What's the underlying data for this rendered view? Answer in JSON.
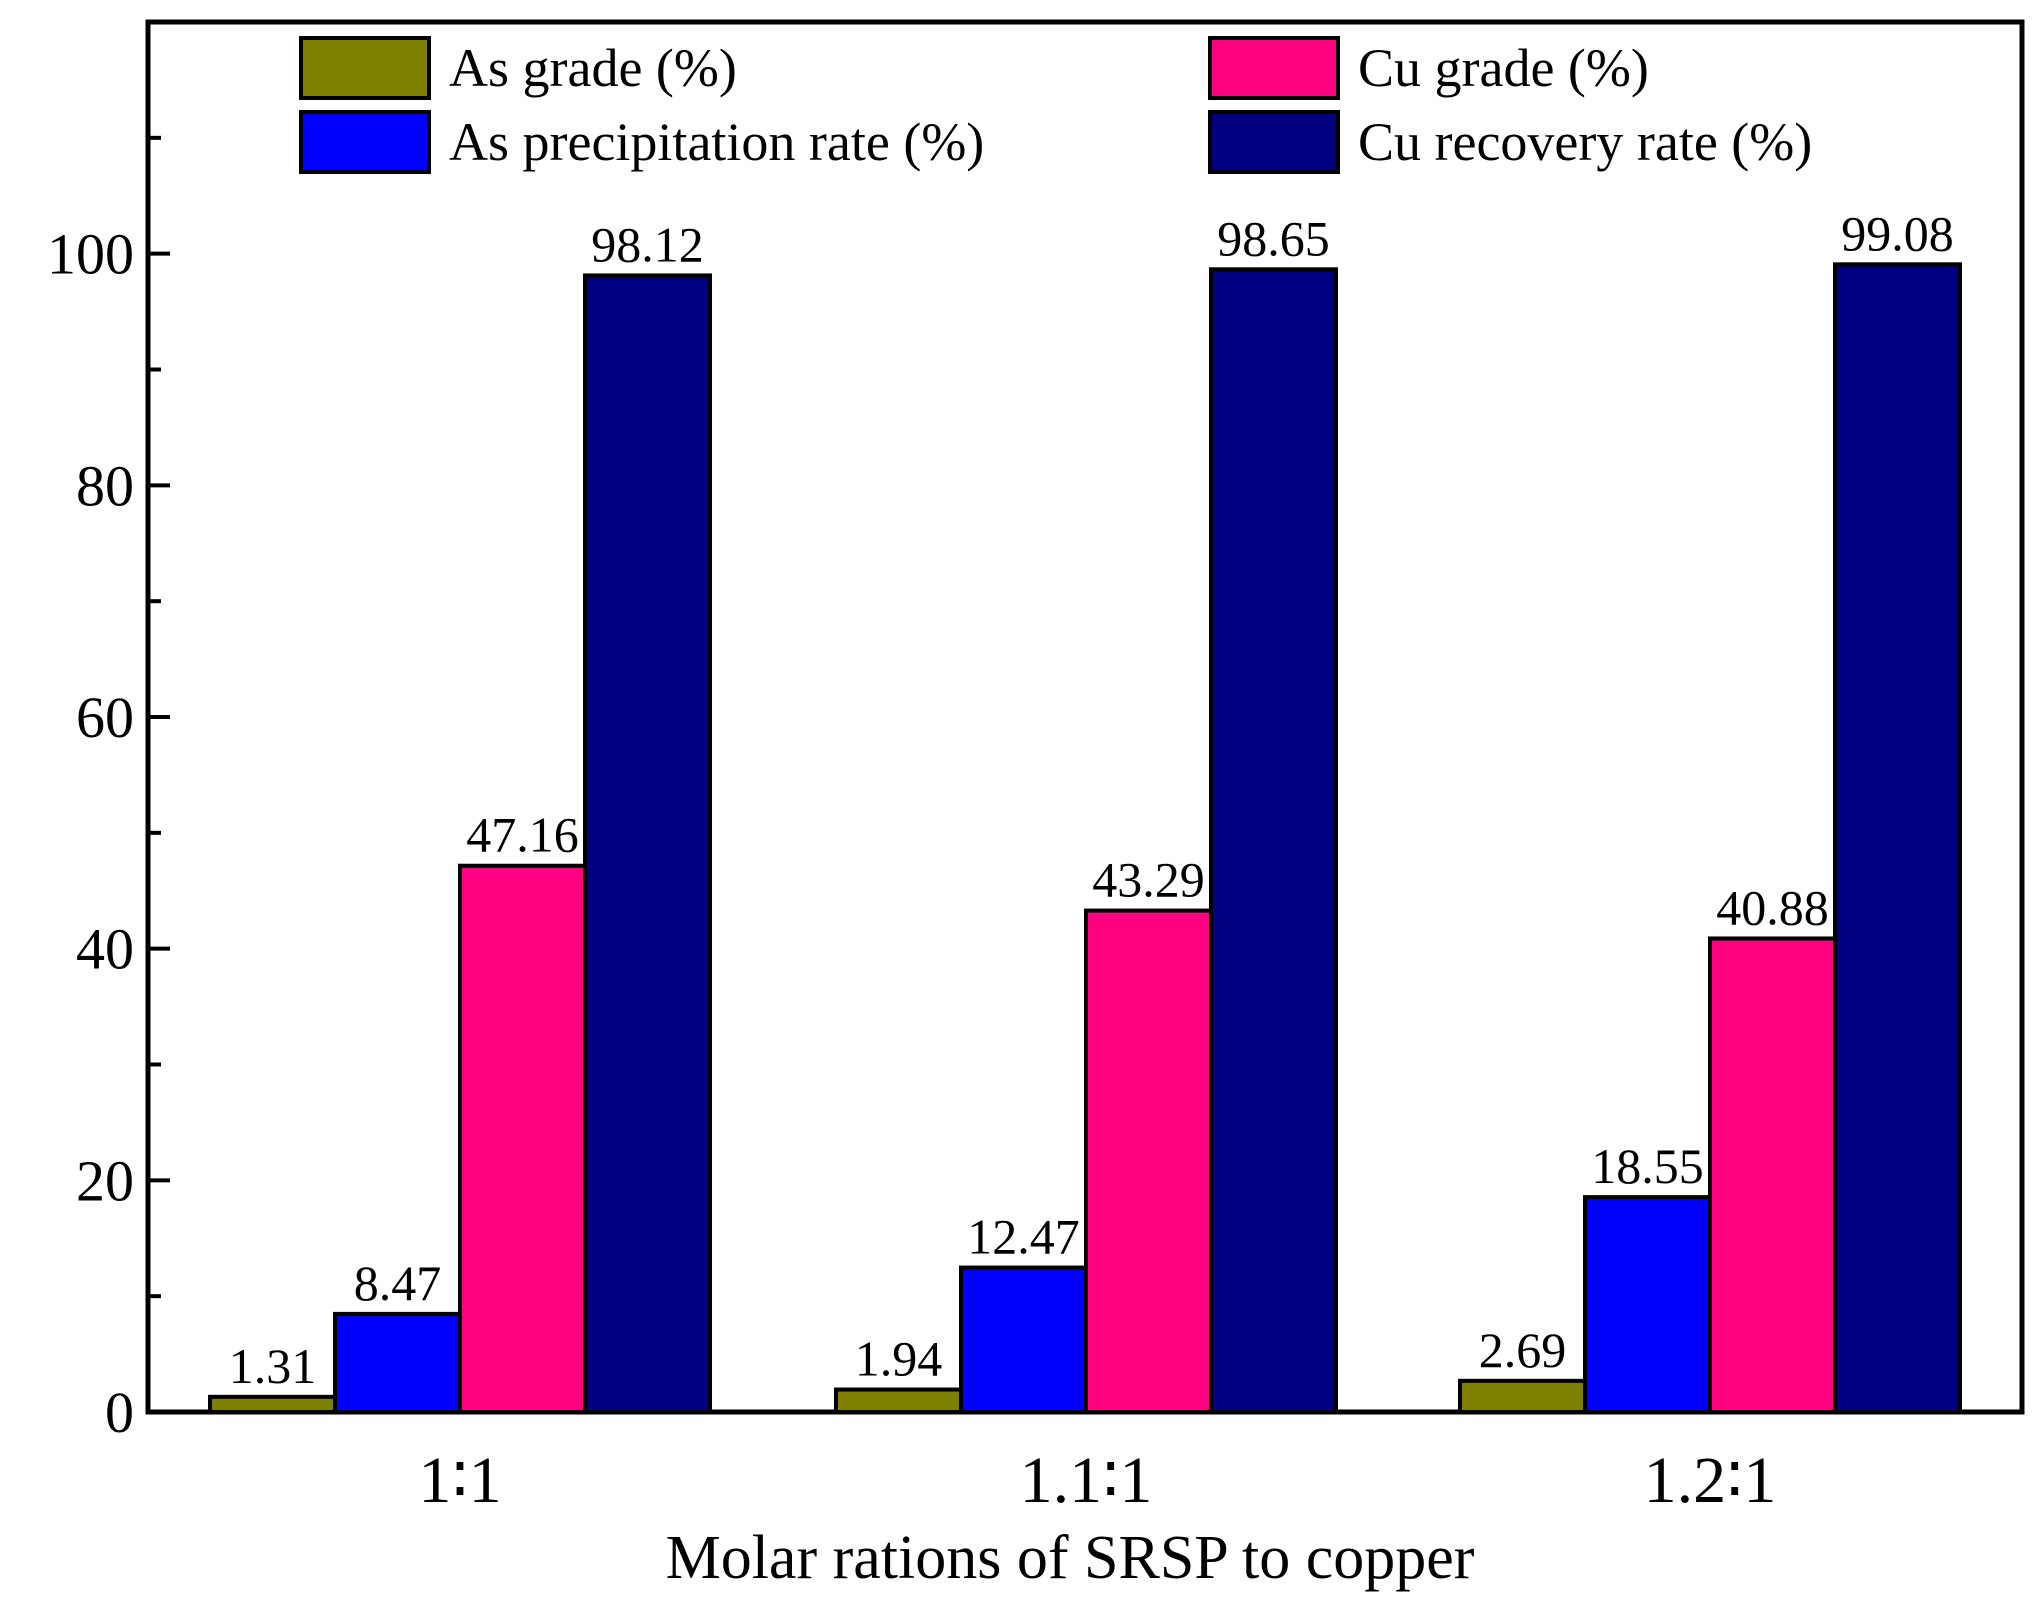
{
  "chart_data": {
    "type": "bar",
    "title": "",
    "xlabel": "Molar rations of SRSP to copper",
    "ylabel": "",
    "ylim": [
      0,
      120
    ],
    "yticks": [
      0,
      20,
      40,
      60,
      80,
      100
    ],
    "y_tick_labels": [
      "0",
      "20",
      "40",
      "60",
      "80",
      "100"
    ],
    "categories": [
      "1∶1",
      "1.1∶1",
      "1.2∶1"
    ],
    "series": [
      {
        "name": "As grade (%)",
        "color": "#808000",
        "values": [
          1.31,
          1.94,
          2.69
        ],
        "labels": [
          "1.31",
          "1.94",
          "2.69"
        ]
      },
      {
        "name": "As precipitation rate (%)",
        "color": "#0000FF",
        "values": [
          8.47,
          12.47,
          18.55
        ],
        "labels": [
          "8.47",
          "12.47",
          "18.55"
        ]
      },
      {
        "name": "Cu grade (%)",
        "color": "#FF0080",
        "values": [
          47.16,
          43.29,
          40.88
        ],
        "labels": [
          "47.16",
          "43.29",
          "40.88"
        ]
      },
      {
        "name": "Cu recovery rate (%)",
        "color": "#000080",
        "values": [
          98.12,
          98.65,
          99.08
        ],
        "labels": [
          "98.12",
          "98.65",
          "99.08"
        ]
      }
    ],
    "legend_position": "top",
    "grid": false
  }
}
